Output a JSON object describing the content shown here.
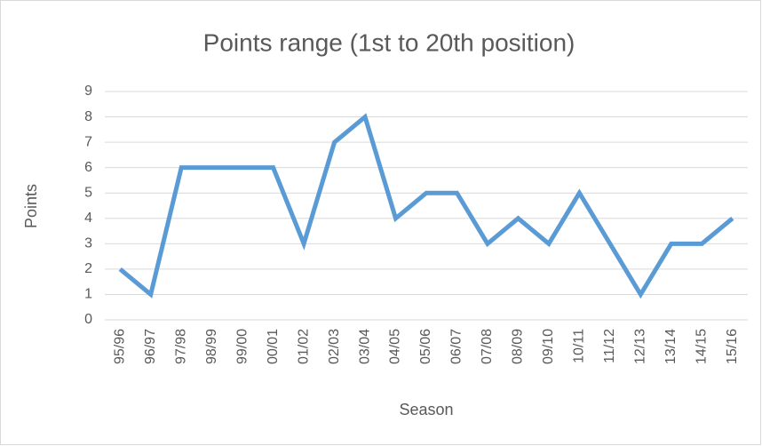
{
  "chart_data": {
    "type": "line",
    "title": "Points range (1st to 20th position)",
    "x_label": "Season",
    "y_label": "Points",
    "categories": [
      "95/96",
      "96/97",
      "97/98",
      "98/99",
      "99/00",
      "00/01",
      "01/02",
      "02/03",
      "03/04",
      "04/05",
      "05/06",
      "06/07",
      "07/08",
      "08/09",
      "09/10",
      "10/11",
      "11/12",
      "12/13",
      "13/14",
      "14/15",
      "15/16"
    ],
    "series": [
      {
        "name": "Points",
        "color": "#5b9bd5",
        "values": [
          2,
          1,
          6,
          6,
          6,
          6,
          3,
          7,
          8,
          4,
          5,
          5,
          3,
          4,
          3,
          5,
          3,
          1,
          3,
          3,
          4
        ]
      }
    ],
    "ylim": [
      0,
      9
    ],
    "yticks": [
      0,
      1,
      2,
      3,
      4,
      5,
      6,
      7,
      8,
      9
    ],
    "grid": true
  }
}
